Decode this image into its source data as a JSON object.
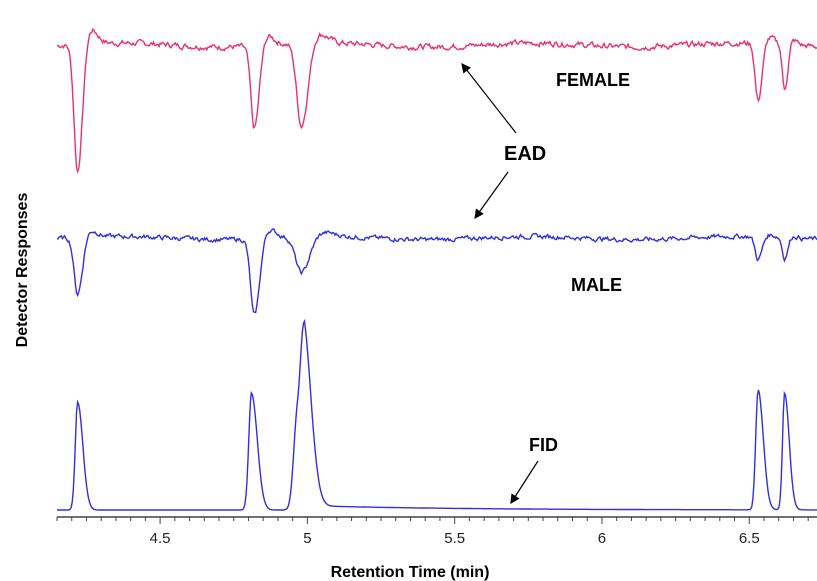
{
  "chart_data": {
    "type": "line",
    "xlabel": "Retention Time (min)",
    "ylabel": "Detector Responses",
    "xlim": [
      4.15,
      6.73
    ],
    "x_ticks": [
      "4.5",
      "5",
      "5.5",
      "6",
      "6.5"
    ],
    "grid": false,
    "annotations": {
      "female": "FEMALE",
      "ead": "EAD",
      "male": "MALE",
      "fid": "FID"
    },
    "peaks_min": [
      4.22,
      4.82,
      4.98,
      6.53,
      6.62
    ],
    "series": [
      {
        "key": "female",
        "color": "#e8326e",
        "baseline": 0,
        "noise": 0.05,
        "dips": [
          {
            "x": 4.22,
            "depth": 1.0,
            "width": 0.012
          },
          {
            "x": 4.82,
            "depth": 0.65,
            "width": 0.012
          },
          {
            "x": 4.98,
            "depth": 0.65,
            "width": 0.016
          },
          {
            "x": 6.53,
            "depth": 0.45,
            "width": 0.01
          },
          {
            "x": 6.62,
            "depth": 0.35,
            "width": 0.008
          }
        ]
      },
      {
        "key": "male",
        "color": "#3030e0",
        "baseline": 0,
        "noise": 0.05,
        "dips": [
          {
            "x": 4.22,
            "depth": 0.55,
            "width": 0.012
          },
          {
            "x": 4.82,
            "depth": 0.75,
            "width": 0.013
          },
          {
            "x": 4.98,
            "depth": 0.35,
            "width": 0.02
          },
          {
            "x": 6.53,
            "depth": 0.22,
            "width": 0.01
          },
          {
            "x": 6.62,
            "depth": 0.2,
            "width": 0.008
          }
        ]
      },
      {
        "key": "fid",
        "color": "#3030e0",
        "baseline": 0,
        "noise": 0,
        "peaks": [
          {
            "x": 4.22,
            "height": 0.72,
            "width": 0.008
          },
          {
            "x": 4.81,
            "height": 0.78,
            "width": 0.009
          },
          {
            "x": 4.965,
            "height": 0.6,
            "width": 0.012
          },
          {
            "x": 4.99,
            "height": 0.85,
            "width": 0.012
          },
          {
            "x": 6.53,
            "height": 0.8,
            "width": 0.008
          },
          {
            "x": 6.62,
            "height": 0.78,
            "width": 0.007
          }
        ]
      }
    ]
  }
}
